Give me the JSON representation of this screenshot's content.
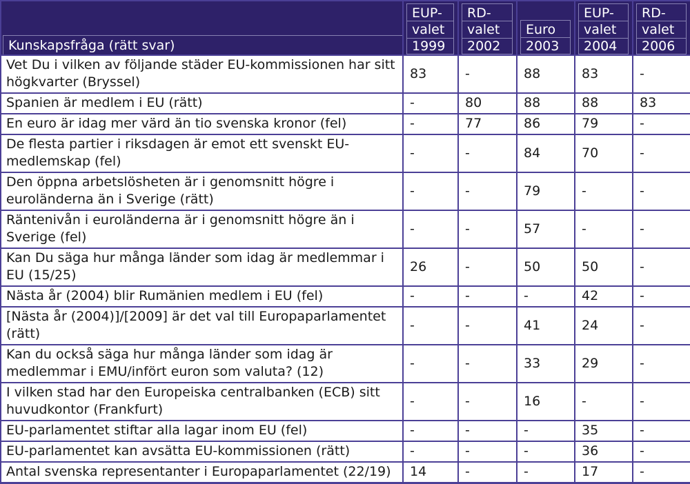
{
  "header": {
    "question_label": "Kunskapsfråga (rätt svar)",
    "column_labels_multiline": [
      "EUP-\nvalet\n1999",
      "RD-\nvalet\n2002",
      "Euro\n2003",
      "EUP-\nvalet\n2004",
      "RD-\nvalet\n2006"
    ]
  },
  "chart_data": {
    "type": "table",
    "title": "Kunskapsfråga (rätt svar)",
    "columns": [
      "Kunskapsfråga (rätt svar)",
      "EUP-valet 1999",
      "RD-valet 2002",
      "Euro 2003",
      "EUP-valet 2004",
      "RD-valet 2006"
    ],
    "rows": [
      [
        "Vet Du i vilken av följande städer EU-kommissionen har sitt högkvarter (Bryssel)",
        "83",
        "-",
        "88",
        "83",
        "-"
      ],
      [
        "Spanien är medlem i EU (rätt)",
        "-",
        "80",
        "88",
        "88",
        "83"
      ],
      [
        "En euro är idag mer värd än tio svenska kronor (fel)",
        "-",
        "77",
        "86",
        "79",
        "-"
      ],
      [
        "De flesta partier i riksdagen är emot ett svenskt EU-medlemskap (fel)",
        "-",
        "-",
        "84",
        "70",
        "-"
      ],
      [
        "Den öppna arbetslösheten är i genomsnitt högre i euroländerna än i Sverige (rätt)",
        "-",
        "-",
        "79",
        "-",
        "-"
      ],
      [
        "Räntenivån i euroländerna är i genomsnitt högre än i Sverige (fel)",
        "-",
        "-",
        "57",
        "-",
        "-"
      ],
      [
        "Kan Du säga hur många länder som idag är medlemmar i EU (15/25)",
        "26",
        "-",
        "50",
        "50",
        "-"
      ],
      [
        "Nästa år (2004) blir Rumänien medlem i EU (fel)",
        "-",
        "-",
        "-",
        "42",
        "-"
      ],
      [
        "[Nästa år (2004)]/[2009] är det val till Europaparlamentet (rätt)",
        "-",
        "-",
        "41",
        "24",
        "-"
      ],
      [
        "Kan du också säga hur många länder som idag är medlemmar i EMU/infört euron som valuta? (12)",
        "-",
        "-",
        "33",
        "29",
        "-"
      ],
      [
        "I vilken stad har den Europeiska centralbanken (ECB) sitt huvudkontor (Frankfurt)",
        "-",
        "-",
        "16",
        "-",
        "-"
      ],
      [
        "EU-parlamentet stiftar alla lagar inom EU (fel)",
        "-",
        "-",
        "-",
        "35",
        "-"
      ],
      [
        "EU-parlamentet kan avsätta EU-kommissionen (rätt)",
        "-",
        "-",
        "-",
        "36",
        "-"
      ],
      [
        "Antal svenska representanter i Europaparlamentet (22/19)",
        "14",
        "-",
        "-",
        "17",
        "-"
      ]
    ]
  },
  "colors": {
    "header_bg": "#2E2169",
    "header_text": "#FFFFFF",
    "header_top_edge": "#4A4088",
    "grid_border": "#4B3F96",
    "header_inner_line": "#8781B2",
    "body_text": "#1A1A1A"
  }
}
